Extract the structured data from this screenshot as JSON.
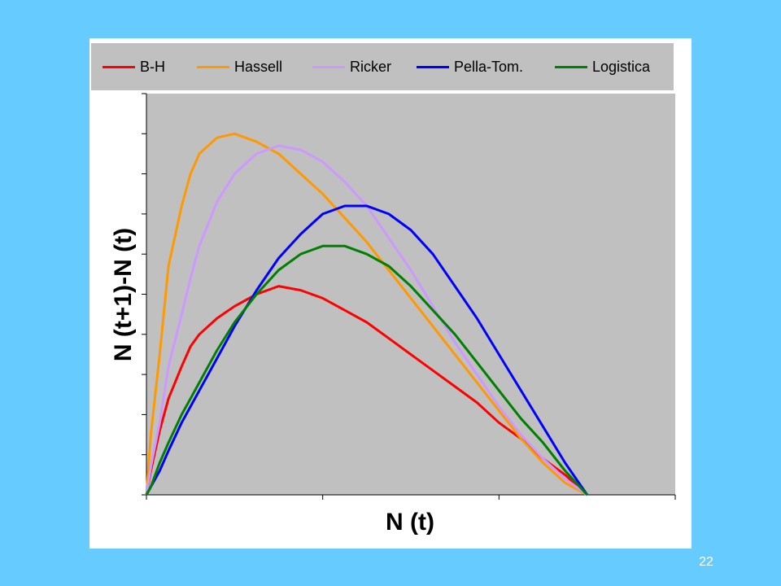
{
  "slide": {
    "page_number": "22",
    "background_color": "#66CCFF"
  },
  "chart_data": {
    "type": "line",
    "title": "",
    "xlabel": "N (t)",
    "ylabel": "N (t+1)-N (t)",
    "tick_labels_shown": false,
    "xlim": [
      0,
      1.2
    ],
    "ylim": [
      0,
      1.0
    ],
    "plot_background": "#C0C0C0",
    "legend_position": "top",
    "x": [
      0,
      0.01,
      0.03,
      0.05,
      0.08,
      0.1,
      0.12,
      0.16,
      0.2,
      0.25,
      0.3,
      0.35,
      0.4,
      0.45,
      0.5,
      0.55,
      0.6,
      0.65,
      0.7,
      0.75,
      0.8,
      0.85,
      0.9,
      0.95,
      1.0
    ],
    "series": [
      {
        "name": "B-H",
        "color": "#FF0000",
        "values": [
          0,
          0.06,
          0.16,
          0.24,
          0.32,
          0.37,
          0.4,
          0.44,
          0.47,
          0.5,
          0.52,
          0.51,
          0.49,
          0.46,
          0.43,
          0.39,
          0.35,
          0.31,
          0.27,
          0.23,
          0.18,
          0.14,
          0.09,
          0.05,
          0
        ]
      },
      {
        "name": "Hassell",
        "color": "#FF9900",
        "values": [
          0,
          0.15,
          0.35,
          0.57,
          0.72,
          0.8,
          0.85,
          0.89,
          0.9,
          0.88,
          0.85,
          0.8,
          0.75,
          0.69,
          0.63,
          0.56,
          0.49,
          0.42,
          0.35,
          0.28,
          0.21,
          0.14,
          0.08,
          0.03,
          0
        ]
      },
      {
        "name": "Ricker",
        "color": "#CC99FF",
        "values": [
          0,
          0.07,
          0.18,
          0.32,
          0.45,
          0.54,
          0.62,
          0.73,
          0.8,
          0.85,
          0.87,
          0.86,
          0.83,
          0.78,
          0.72,
          0.64,
          0.56,
          0.47,
          0.38,
          0.3,
          0.22,
          0.15,
          0.09,
          0.04,
          0
        ]
      },
      {
        "name": "Pella-Tom.",
        "color": "#0000FF",
        "values": [
          0,
          0.02,
          0.06,
          0.11,
          0.18,
          0.22,
          0.26,
          0.34,
          0.42,
          0.51,
          0.59,
          0.65,
          0.7,
          0.72,
          0.72,
          0.7,
          0.66,
          0.6,
          0.52,
          0.44,
          0.35,
          0.26,
          0.17,
          0.08,
          0
        ]
      },
      {
        "name": "Logistica",
        "color": "#008000",
        "values": [
          0,
          0.02,
          0.08,
          0.13,
          0.2,
          0.24,
          0.28,
          0.36,
          0.43,
          0.5,
          0.56,
          0.6,
          0.62,
          0.62,
          0.6,
          0.57,
          0.52,
          0.46,
          0.4,
          0.33,
          0.26,
          0.19,
          0.13,
          0.06,
          0
        ]
      }
    ]
  }
}
